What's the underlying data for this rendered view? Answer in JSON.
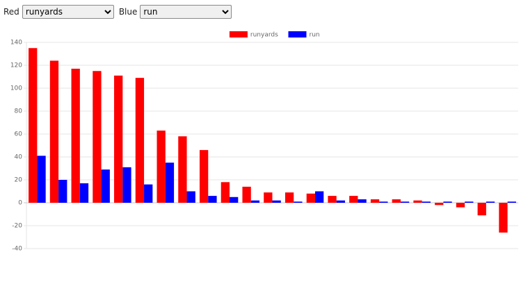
{
  "controls": {
    "red_label": "Red",
    "red_value": "runyards",
    "blue_label": "Blue",
    "blue_value": "run"
  },
  "chart_data": {
    "type": "bar",
    "categories": [
      null,
      null,
      null,
      null,
      null,
      null,
      null,
      null,
      null,
      null,
      null,
      null,
      null,
      null,
      null,
      null,
      null,
      null,
      null,
      null,
      null,
      null,
      null
    ],
    "series": [
      {
        "name": "runyards",
        "color": "#ff0000",
        "values": [
          135,
          124,
          117,
          115,
          111,
          109,
          63,
          58,
          46,
          18,
          14,
          9,
          9,
          8,
          6,
          6,
          3,
          3,
          2,
          -2,
          -4,
          -11,
          -26
        ]
      },
      {
        "name": "run",
        "color": "#0000ff",
        "values": [
          41,
          20,
          17,
          29,
          31,
          16,
          35,
          10,
          6,
          5,
          2,
          2,
          1,
          10,
          2,
          3,
          1,
          1,
          1,
          1,
          1,
          1,
          1
        ]
      }
    ],
    "ylim": [
      -40,
      140
    ],
    "yticks": [
      -40,
      -20,
      0,
      20,
      40,
      60,
      80,
      100,
      120,
      140
    ],
    "grid": true,
    "legend": "top"
  }
}
